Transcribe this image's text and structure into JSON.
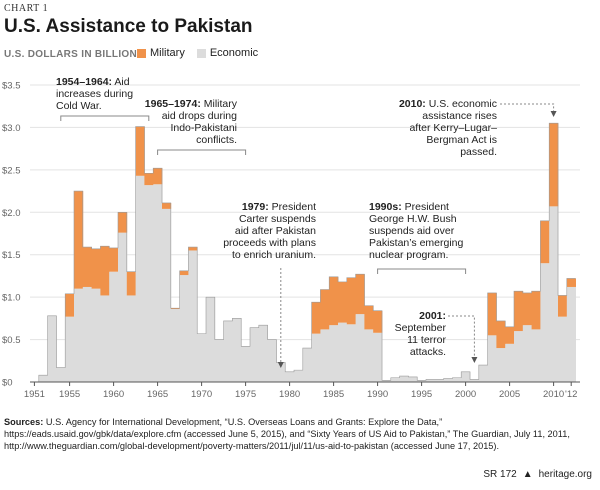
{
  "header_label": "CHART 1",
  "title": "U.S. Assistance to Pakistan",
  "subtitle": "U.S. DOLLARS IN BILLIONS",
  "legend": [
    {
      "name": "Military",
      "color": "#f0924a"
    },
    {
      "name": "Economic",
      "color": "#dcdcdc"
    }
  ],
  "chart_data": {
    "type": "bar",
    "stacked": true,
    "x": [
      1951,
      1952,
      1953,
      1954,
      1955,
      1956,
      1957,
      1958,
      1959,
      1960,
      1961,
      1962,
      1963,
      1964,
      1965,
      1966,
      1967,
      1968,
      1969,
      1970,
      1971,
      1972,
      1973,
      1974,
      1975,
      1976,
      1977,
      1978,
      1979,
      1980,
      1981,
      1982,
      1983,
      1984,
      1985,
      1986,
      1987,
      1988,
      1989,
      1990,
      1991,
      1992,
      1993,
      1994,
      1995,
      1996,
      1997,
      1998,
      1999,
      2000,
      2001,
      2002,
      2003,
      2004,
      2005,
      2006,
      2007,
      2008,
      2009,
      2010,
      2011,
      2012
    ],
    "series": [
      {
        "name": "Economic",
        "values": [
          0.0,
          0.08,
          0.78,
          0.17,
          0.77,
          1.1,
          1.12,
          1.1,
          1.02,
          1.3,
          1.76,
          1.02,
          2.43,
          2.32,
          2.33,
          2.04,
          0.86,
          1.26,
          1.55,
          0.57,
          1.0,
          0.5,
          0.72,
          0.75,
          0.42,
          0.64,
          0.67,
          0.5,
          0.23,
          0.12,
          0.14,
          0.4,
          0.57,
          0.62,
          0.67,
          0.7,
          0.68,
          0.8,
          0.62,
          0.58,
          0.02,
          0.05,
          0.07,
          0.06,
          0.02,
          0.03,
          0.03,
          0.04,
          0.05,
          0.12,
          0.03,
          0.2,
          0.55,
          0.4,
          0.45,
          0.6,
          0.67,
          0.62,
          1.4,
          2.07,
          0.77,
          1.12
        ]
      },
      {
        "name": "Military",
        "values": [
          0,
          0,
          0,
          0,
          0.27,
          1.15,
          0.47,
          0.47,
          0.58,
          0.28,
          0.24,
          0.28,
          0.58,
          0.14,
          0.19,
          0.07,
          0.01,
          0.05,
          0.04,
          0,
          0,
          0,
          0,
          0,
          0,
          0,
          0,
          0,
          0,
          0,
          0,
          0,
          0.37,
          0.47,
          0.57,
          0.48,
          0.55,
          0.47,
          0.28,
          0.26,
          0,
          0,
          0,
          0,
          0,
          0,
          0,
          0,
          0,
          0,
          0,
          0.0,
          0.5,
          0.32,
          0.2,
          0.47,
          0.38,
          0.45,
          0.5,
          0.98,
          0.25,
          0.1
        ]
      }
    ],
    "x_tick_labels": [
      "1951",
      "1955",
      "1960",
      "1965",
      "1970",
      "1975",
      "1980",
      "1985",
      "1990",
      "1995",
      "2000",
      "2005",
      "2010",
      "'12"
    ],
    "x_tick_years": [
      1951,
      1955,
      1960,
      1965,
      1970,
      1975,
      1980,
      1985,
      1990,
      1995,
      2000,
      2005,
      2010,
      2012
    ],
    "y_tick_labels": [
      "$0",
      "$0.5",
      "$1.0",
      "$1.5",
      "$2.0",
      "$2.5",
      "$3.0",
      "$3.5"
    ],
    "y_ticks": [
      0,
      0.5,
      1.0,
      1.5,
      2.0,
      2.5,
      3.0,
      3.5
    ],
    "ylim": [
      0,
      3.5
    ],
    "grid": true,
    "annotations": [
      {
        "id": "a1954",
        "lines": [
          "1954–1964: Aid",
          "increases during",
          "Cold War."
        ],
        "bold": "1954–1964:"
      },
      {
        "id": "a1965",
        "lines": [
          "1965–1974: Military",
          "aid drops during",
          "Indo-Pakistani",
          "conflicts."
        ],
        "bold": "1965–1974:"
      },
      {
        "id": "a1979",
        "lines": [
          "1979: President",
          "Carter suspends",
          "aid after Pakistan",
          "proceeds with plans",
          "to enrich uranium."
        ],
        "bold": "1979:"
      },
      {
        "id": "a1990",
        "lines": [
          "1990s: President",
          "George H.W. Bush",
          "suspends aid over",
          "Pakistan’s emerging",
          "nuclear program."
        ],
        "bold": "1990s:"
      },
      {
        "id": "a2001",
        "lines": [
          "2001:",
          "September",
          "11 terror",
          "attacks."
        ],
        "bold": "2001:"
      },
      {
        "id": "a2010",
        "lines": [
          "2010: U.S. economic",
          "assistance rises",
          "after Kerry–Lugar–",
          "Bergman Act is",
          "passed."
        ],
        "bold": "2010:"
      }
    ]
  },
  "sources_label": "Sources:",
  "sources_text": "U.S. Agency for International Development, “U.S. Overseas Loans and Grants: Explore the Data,” https://eads.usaid.gov/gbk/data/explore.cfm (accessed June 5, 2015), and “Sixty Years of US Aid to Pakistan,” The Guardian, July 11, 2011, http://www.theguardian.com/global-development/poverty-matters/2011/jul/11/us-aid-to-pakistan (accessed June 17, 2015).",
  "footer": {
    "report": "SR 172",
    "site": "heritage.org",
    "bell_icon": "bell-icon"
  }
}
